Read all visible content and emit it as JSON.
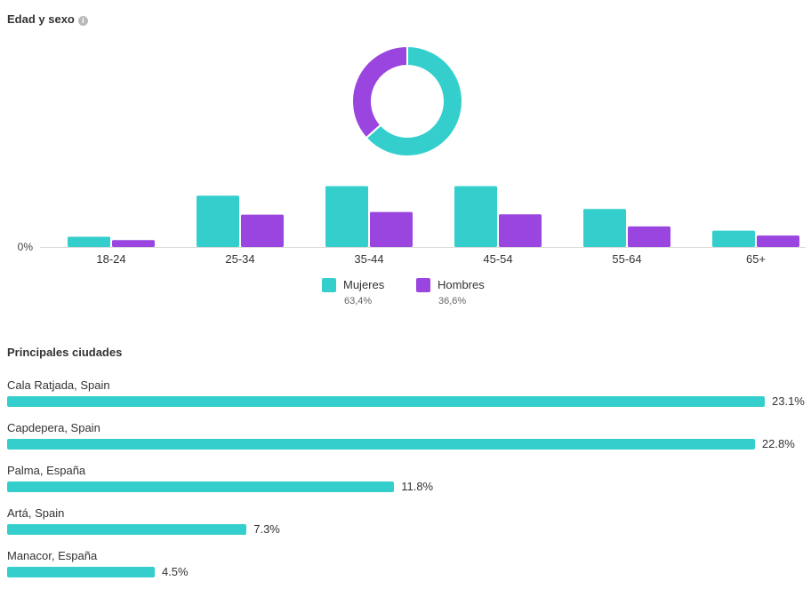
{
  "age_gender": {
    "title": "Edad y sexo",
    "info_icon": "info-icon",
    "colors": {
      "women": "#34cfcc",
      "men": "#9b45e0"
    },
    "legend": [
      {
        "name": "Mujeres",
        "percent": "63,4%"
      },
      {
        "name": "Hombres",
        "percent": "36,6%"
      }
    ]
  },
  "cities": {
    "title": "Principales ciudades",
    "color": "#34cfcc"
  },
  "chart_data": [
    {
      "type": "pie",
      "labels": [
        "Mujeres",
        "Hombres"
      ],
      "values": [
        63.4,
        36.6
      ],
      "donut": true
    },
    {
      "type": "bar",
      "categories": [
        "18-24",
        "25-34",
        "35-44",
        "45-54",
        "55-64",
        "65+"
      ],
      "series": [
        {
          "name": "Mujeres",
          "values": [
            2.7,
            13.5,
            16.0,
            16.0,
            10.0,
            4.3
          ]
        },
        {
          "name": "Hombres",
          "values": [
            1.8,
            8.5,
            9.2,
            8.6,
            5.4,
            3.0
          ]
        }
      ],
      "y_tick_labels": [
        "0%"
      ],
      "ylim": [
        0,
        18
      ],
      "legend": "bottom"
    },
    {
      "type": "bar",
      "orientation": "horizontal",
      "categories": [
        "Cala Ratjada, Spain",
        "Capdepera, Spain",
        "Palma, España",
        "Artá, Spain",
        "Manacor, España"
      ],
      "values": [
        23.1,
        22.8,
        11.8,
        7.3,
        4.5
      ],
      "value_labels": [
        "23.1%",
        "22.8%",
        "11.8%",
        "7.3%",
        "4.5%"
      ]
    }
  ]
}
